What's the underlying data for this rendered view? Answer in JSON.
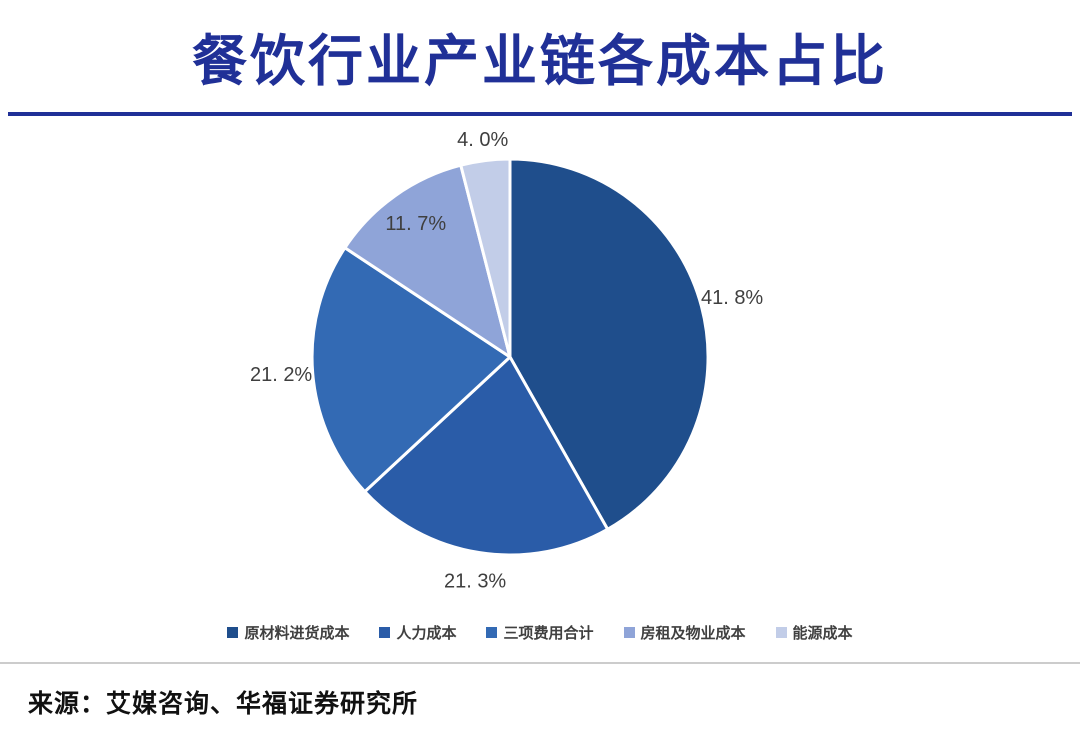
{
  "title": "餐饮行业产业链各成本占比",
  "source": "来源：艾媒咨询、华福证券研究所",
  "chart_data": {
    "type": "pie",
    "title": "餐饮行业产业链各成本占比",
    "labels": [
      "原材料进货成本",
      "人力成本",
      "三项费用合计",
      "房租及物业成本",
      "能源成本"
    ],
    "values": [
      41.8,
      21.3,
      21.2,
      11.7,
      4.0
    ],
    "value_labels": [
      "41. 8%",
      "21. 3%",
      "21. 2%",
      "11. 7%",
      "4. 0%"
    ],
    "colors": [
      "#1F4E8C",
      "#2A5CA8",
      "#336AB4",
      "#8FA4D8",
      "#C2CDE8"
    ],
    "legend_position": "bottom",
    "start_angle_deg": 0,
    "direction": "clockwise",
    "slice_border_color": "#FFFFFF"
  },
  "theme": {
    "title_color": "#203097",
    "divider_color": "#203097",
    "label_color": "#3F3F3F",
    "legend_text_color": "#404040",
    "source_divider_color": "#CCCCCC",
    "source_text_color": "#111111",
    "background_color": "#FFFFFF"
  }
}
